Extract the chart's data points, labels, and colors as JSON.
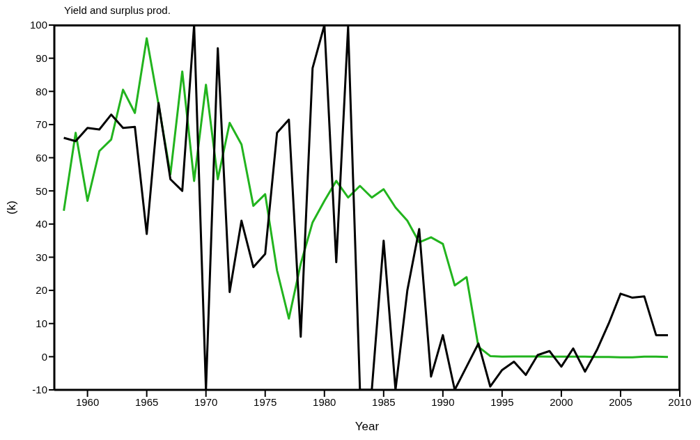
{
  "chart_data": {
    "type": "line",
    "title": "Yield and surplus prod.",
    "xlabel": "Year",
    "ylabel": "(k)",
    "x": [
      1958,
      1959,
      1960,
      1961,
      1962,
      1963,
      1964,
      1965,
      1966,
      1967,
      1968,
      1969,
      1970,
      1971,
      1972,
      1973,
      1974,
      1975,
      1976,
      1977,
      1978,
      1979,
      1980,
      1981,
      1982,
      1983,
      1984,
      1985,
      1986,
      1987,
      1988,
      1989,
      1990,
      1991,
      1992,
      1993,
      1994,
      1995,
      1996,
      1997,
      1998,
      1999,
      2000,
      2001,
      2002,
      2003,
      2004,
      2005,
      2006,
      2007,
      2008,
      2009
    ],
    "series": [
      {
        "color": "#22b41e",
        "values": [
          44,
          67.5,
          47,
          62,
          65.5,
          80.5,
          73.5,
          96,
          76,
          55,
          86,
          53,
          82,
          53.5,
          70.5,
          64,
          45.5,
          49,
          26,
          11.5,
          28,
          40.5,
          47,
          53,
          48,
          51.5,
          48,
          50.5,
          45,
          41,
          34.5,
          36,
          34,
          21.5,
          24,
          3,
          0.2,
          0,
          0.1,
          0.1,
          0.1,
          0,
          0,
          0,
          0,
          -0.1,
          -0.1,
          -0.2,
          -0.2,
          0,
          0,
          -0.1
        ]
      },
      {
        "color": "#000000",
        "values": [
          66,
          65,
          69,
          68.5,
          73,
          69,
          69.3,
          37,
          76.5,
          53.5,
          50,
          100,
          -10,
          93,
          19.5,
          41,
          27,
          31,
          67.5,
          71.5,
          6,
          87,
          100,
          28.5,
          99.5,
          -10,
          -10,
          35,
          -10,
          20,
          38.5,
          -6,
          6.5,
          -10,
          -3,
          4,
          -9,
          -4,
          -1.5,
          -5.5,
          0.5,
          1.7,
          -3,
          2.5,
          -4.5,
          2,
          10,
          19,
          17.8,
          18.2,
          6.5,
          6.5
        ]
      }
    ],
    "xlim": [
      1957.2,
      2010
    ],
    "xticks": [
      1960,
      1965,
      1970,
      1975,
      1980,
      1985,
      1990,
      1995,
      2000,
      2005,
      2010
    ],
    "ylim": [
      -10,
      100
    ],
    "yticks": [
      -10,
      0,
      10,
      20,
      30,
      40,
      50,
      60,
      70,
      80,
      90,
      100
    ],
    "grid": false,
    "legend": false,
    "marker": "none",
    "line_style": "solid"
  }
}
